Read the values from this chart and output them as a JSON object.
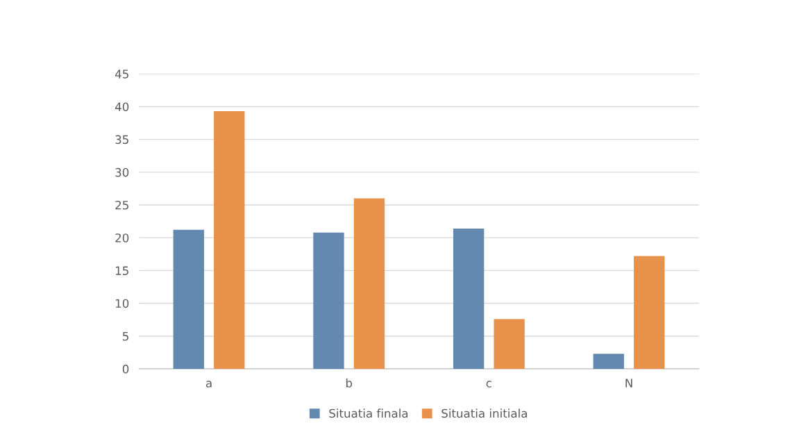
{
  "chart_data": {
    "type": "bar",
    "categories": [
      "a",
      "b",
      "c",
      "N"
    ],
    "series": [
      {
        "name": "Situatia finala",
        "color": "#6389b0",
        "values": [
          21.2,
          20.8,
          21.4,
          2.3
        ]
      },
      {
        "name": "Situatia initiala",
        "color": "#e8914a",
        "values": [
          39.3,
          26.0,
          7.6,
          17.2
        ]
      }
    ],
    "ylim": [
      0,
      45
    ],
    "yticks": [
      0,
      5,
      10,
      15,
      20,
      25,
      30,
      35,
      40,
      45
    ],
    "grid": "y",
    "legend": "bottom"
  }
}
